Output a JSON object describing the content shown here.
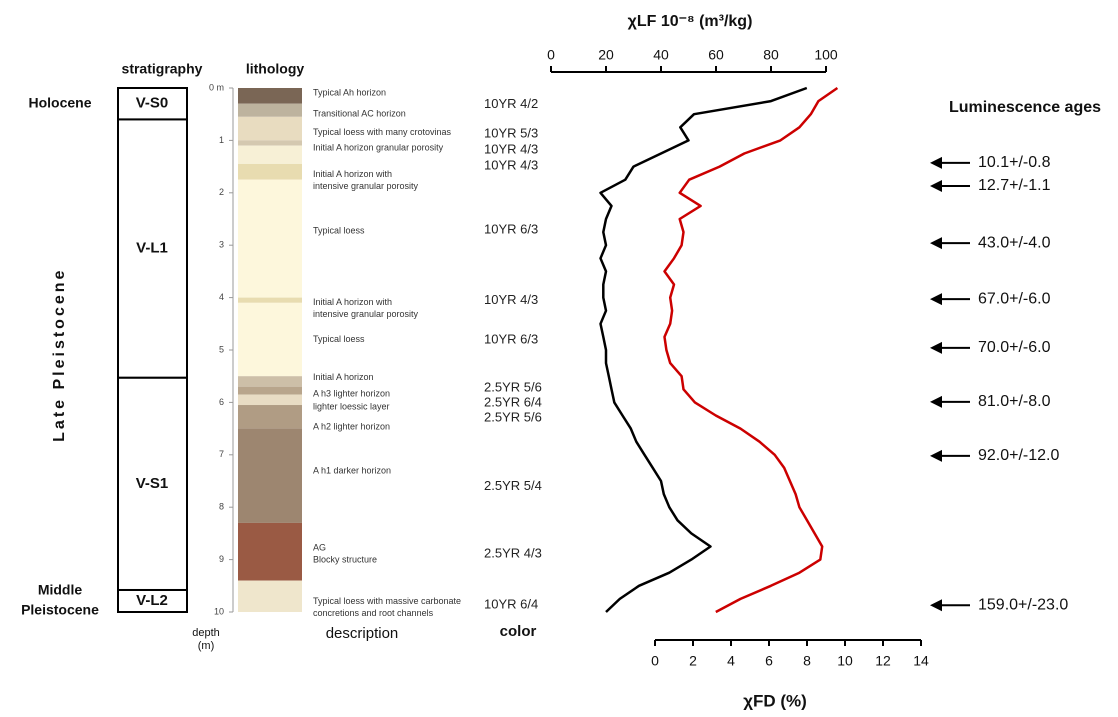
{
  "chart_data": {
    "type": "line",
    "ylabel_top": "χLF 10⁻⁸ (m³/kg)",
    "ylabel_bottom": "χFD (%)",
    "xlabel": [
      "depth",
      "(m)"
    ],
    "xlim": [
      0,
      10
    ],
    "xticks": [
      {
        "value": 0,
        "label": "0 m"
      },
      1,
      2,
      3,
      4,
      5,
      6,
      7,
      8,
      9,
      10
    ],
    "ylim": [
      0,
      100
    ],
    "yticks": [
      0,
      20,
      40,
      60,
      80,
      100
    ],
    "y2lim": [
      0,
      14
    ],
    "y2ticks": [
      0,
      2,
      4,
      6,
      8,
      10,
      12,
      14
    ],
    "x": [
      0,
      0.25,
      0.5,
      0.75,
      1,
      1.25,
      1.5,
      1.75,
      2,
      2.25,
      2.5,
      2.75,
      3,
      3.25,
      3.5,
      3.75,
      4,
      4.25,
      4.5,
      4.75,
      5,
      5.25,
      5.5,
      5.75,
      6,
      6.25,
      6.5,
      6.75,
      7,
      7.25,
      7.5,
      7.75,
      8,
      8.25,
      8.5,
      8.75,
      9,
      9.25,
      9.5,
      9.75,
      10
    ],
    "series": [
      {
        "color": "#000000",
        "axis": "y",
        "values": [
          93,
          80,
          52,
          47,
          50,
          40,
          30,
          27,
          18,
          22,
          20,
          19,
          20,
          18,
          20,
          19,
          19,
          20,
          18,
          19,
          20,
          20,
          21,
          22,
          23,
          26,
          29,
          31,
          34,
          37,
          40,
          41,
          43,
          46,
          51,
          58,
          51,
          43,
          32,
          25,
          20
        ]
      },
      {
        "color": "#cc0000",
        "axis": "y2",
        "values": [
          9.6,
          8.6,
          8.2,
          7.6,
          6.6,
          4.7,
          3.4,
          1.8,
          1.3,
          2.4,
          1.3,
          1.5,
          1.4,
          1.0,
          0.5,
          1.0,
          0.8,
          0.9,
          0.8,
          0.5,
          0.6,
          0.8,
          1.4,
          1.5,
          2.1,
          3.2,
          4.5,
          5.5,
          6.3,
          6.8,
          7.1,
          7.4,
          7.6,
          8.0,
          8.4,
          8.8,
          8.7,
          7.6,
          6.1,
          4.5,
          3.2
        ]
      }
    ],
    "headers": {
      "stratigraphy": "stratigraphy",
      "lithology": "lithology",
      "description": "description",
      "color": "color",
      "ages": "Luminescence ages"
    },
    "periods": [
      {
        "lines": [
          "Holocene"
        ],
        "from": 0,
        "to": 0.6
      },
      {
        "lines": [
          "Late Pleistocene"
        ],
        "from": 0.6,
        "to": 9.58,
        "vertical": true
      },
      {
        "lines": [
          "Middle",
          "Pleistocene"
        ],
        "from": 9.58,
        "to": 10
      }
    ],
    "units": [
      {
        "label": "V-S0",
        "from": 0,
        "to": 0.6
      },
      {
        "label": "V-L1",
        "from": 0.6,
        "to": 5.53
      },
      {
        "label": "V-S1",
        "from": 5.53,
        "to": 9.58
      },
      {
        "label": "V-L2",
        "from": 9.58,
        "to": 10
      }
    ],
    "layers": [
      {
        "from": 0,
        "to": 0.3,
        "color": "#7a6655"
      },
      {
        "from": 0.3,
        "to": 0.55,
        "color": "#bdb39e"
      },
      {
        "from": 0.55,
        "to": 1.0,
        "color": "#e8dcc0"
      },
      {
        "from": 1.0,
        "to": 1.1,
        "color": "#d4c8b0"
      },
      {
        "from": 1.1,
        "to": 1.45,
        "color": "#f7f0d6"
      },
      {
        "from": 1.45,
        "to": 1.75,
        "color": "#e8dcb0"
      },
      {
        "from": 1.75,
        "to": 4.0,
        "color": "#fdf7dc"
      },
      {
        "from": 4.0,
        "to": 4.1,
        "color": "#e8dcb0"
      },
      {
        "from": 4.1,
        "to": 5.5,
        "color": "#fdf7dc"
      },
      {
        "from": 5.5,
        "to": 5.7,
        "color": "#cdbfa8"
      },
      {
        "from": 5.7,
        "to": 5.85,
        "color": "#b8a58c"
      },
      {
        "from": 5.85,
        "to": 6.05,
        "color": "#e8dcc4"
      },
      {
        "from": 6.05,
        "to": 6.5,
        "color": "#b09c84"
      },
      {
        "from": 6.5,
        "to": 8.3,
        "color": "#9d8670"
      },
      {
        "from": 8.3,
        "to": 9.4,
        "color": "#9a5a44"
      },
      {
        "from": 9.4,
        "to": 10,
        "color": "#efe6cc"
      }
    ],
    "descriptions": [
      {
        "lines": [
          "Typical Ah horizon"
        ],
        "depth": 0.1
      },
      {
        "lines": [
          "Transitional AC horizon"
        ],
        "depth": 0.5
      },
      {
        "lines": [
          "Typical loess with many crotovinas"
        ],
        "depth": 0.85
      },
      {
        "lines": [
          "Initial A horizon granular porosity"
        ],
        "depth": 1.15
      },
      {
        "lines": [
          "Initial A horizon with",
          "intensive granular porosity"
        ],
        "depth": 1.65
      },
      {
        "lines": [
          "Typical loess"
        ],
        "depth": 2.73
      },
      {
        "lines": [
          "Initial A horizon with",
          "intensive granular porosity"
        ],
        "depth": 4.1
      },
      {
        "lines": [
          "Typical loess"
        ],
        "depth": 4.8
      },
      {
        "lines": [
          "Initial A horizon"
        ],
        "depth": 5.53
      },
      {
        "lines": [
          "A h3 lighter horizon"
        ],
        "depth": 5.84
      },
      {
        "lines": [
          "lighter loessic layer"
        ],
        "depth": 6.09
      },
      {
        "lines": [
          "A h2 lighter horizon"
        ],
        "depth": 6.47
      },
      {
        "lines": [
          "A h1 darker horizon"
        ],
        "depth": 7.31
      },
      {
        "lines": [
          "AG",
          "Blocky structure"
        ],
        "depth": 8.78
      },
      {
        "lines": [
          "Typical loess with massive carbonate",
          "concretions and root channels"
        ],
        "depth": 9.8
      }
    ],
    "munsell": [
      {
        "label": "10YR 4/2",
        "depth": 0.32
      },
      {
        "label": "10YR 5/3",
        "depth": 0.88
      },
      {
        "label": "10YR 4/3",
        "depth": 1.18
      },
      {
        "label": "10YR 4/3",
        "depth": 1.49
      },
      {
        "label": "10YR 6/3",
        "depth": 2.71
      },
      {
        "label": "10YR 4/3",
        "depth": 4.06
      },
      {
        "label": "10YR 6/3",
        "depth": 4.81
      },
      {
        "label": "2.5YR 5/6",
        "depth": 5.73
      },
      {
        "label": "2.5YR 6/4",
        "depth": 6.01
      },
      {
        "label": "2.5YR 5/6",
        "depth": 6.3
      },
      {
        "label": "2.5YR 5/4",
        "depth": 7.61
      },
      {
        "label": "2.5YR 4/3",
        "depth": 8.89
      },
      {
        "label": "10YR 6/4",
        "depth": 9.87
      }
    ],
    "ages": [
      {
        "label": "10.1+/-0.8",
        "depth": 1.43
      },
      {
        "label": "12.7+/-1.1",
        "depth": 1.87
      },
      {
        "label": "43.0+/-4.0",
        "depth": 2.96
      },
      {
        "label": "67.0+/-6.0",
        "depth": 4.03
      },
      {
        "label": "70.0+/-6.0",
        "depth": 4.96
      },
      {
        "label": "81.0+/-8.0",
        "depth": 5.99
      },
      {
        "label": "92.0+/-12.0",
        "depth": 7.02
      },
      {
        "label": "159.0+/-23.0",
        "depth": 9.87
      }
    ]
  }
}
